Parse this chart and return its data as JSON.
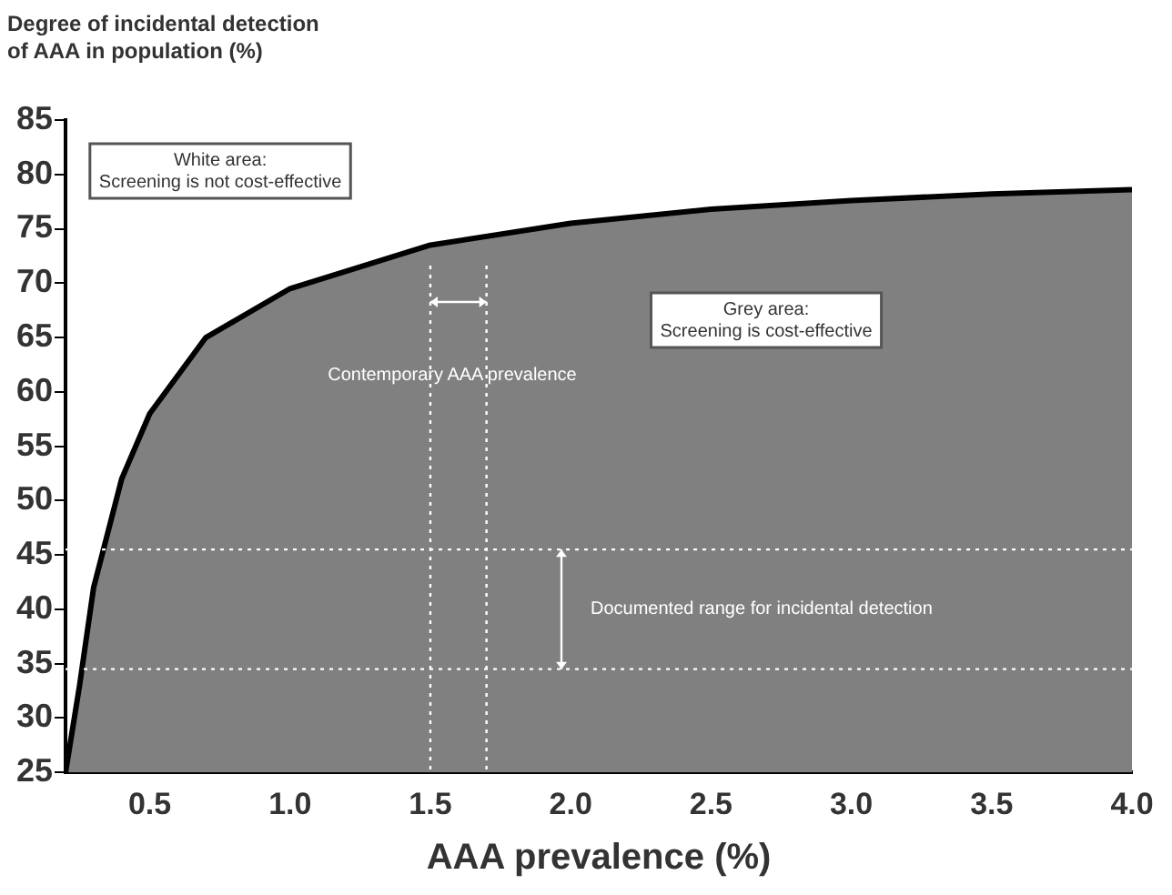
{
  "chart_data": {
    "type": "area",
    "ylabel": "Degree of incidental detection\nof AAA in population (%)",
    "xlabel": "AAA prevalence (%)",
    "x": [
      0.2,
      0.25,
      0.3,
      0.4,
      0.5,
      0.7,
      1.0,
      1.5,
      2.0,
      2.5,
      3.0,
      3.5,
      4.0
    ],
    "series": [
      {
        "color": "#808080",
        "values": [
          25,
          33,
          42,
          52,
          58,
          65,
          69.5,
          73.5,
          75.5,
          76.8,
          77.6,
          78.2,
          78.6
        ]
      }
    ],
    "xlim": [
      0.2,
      4.0
    ],
    "xticks": [
      0.5,
      {
        "value": 1,
        "label": "1.0"
      },
      1.5,
      {
        "value": 2,
        "label": "2.0"
      },
      2.5,
      {
        "value": 3,
        "label": "3.0"
      },
      3.5,
      {
        "value": 4,
        "label": "4.0"
      }
    ],
    "ylim": [
      25,
      85
    ],
    "yticks": [
      25,
      30,
      35,
      40,
      45,
      50,
      55,
      60,
      65,
      70,
      75,
      80,
      85
    ],
    "ref_lines": [
      {
        "axis": "x",
        "value": 1.5,
        "label": "Contemporary AAA prevalence",
        "color": "#ffffff",
        "line_style": "dotted"
      },
      {
        "axis": "x",
        "value": 1.7,
        "color": "#ffffff",
        "line_style": "dotted"
      },
      {
        "axis": "y",
        "value": 45.5,
        "label": "Documented range for incidental detection",
        "color": "#ffffff",
        "line_style": "dotted"
      },
      {
        "axis": "y",
        "value": 34.5,
        "color": "#ffffff",
        "line_style": "dotted"
      }
    ],
    "annotations": [
      "White area:\nScreening is not cost-effective",
      "Grey area:\nScreening is cost-effective"
    ],
    "grid": false,
    "legend": false
  }
}
